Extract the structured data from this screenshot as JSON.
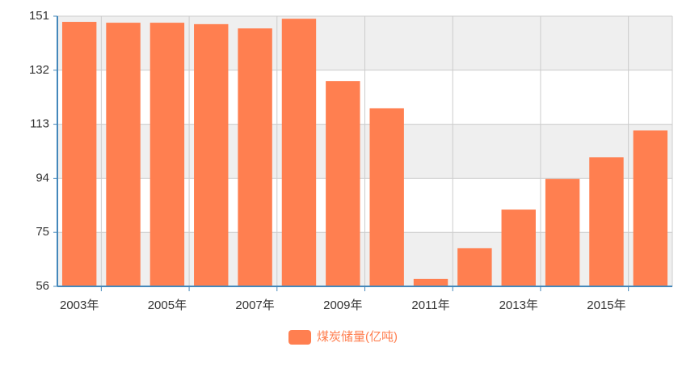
{
  "chart_data": {
    "type": "bar",
    "categories": [
      "2003年",
      null,
      "2005年",
      null,
      "2007年",
      null,
      "2009年",
      null,
      "2011年",
      null,
      "2013年",
      null,
      "2015年",
      null
    ],
    "series": [
      {
        "name": "煤炭储量(亿吨)",
        "color": "#ff7f50",
        "values": [
          149.0,
          148.7,
          148.7,
          148.2,
          146.7,
          150.1,
          128.2,
          118.6,
          58.6,
          69.4,
          83.0,
          93.8,
          101.4,
          110.8
        ]
      }
    ],
    "ylim": [
      56,
      151
    ],
    "yticks": [
      56,
      75,
      94,
      113,
      132,
      151
    ],
    "grid": true,
    "legend": "bottom"
  }
}
